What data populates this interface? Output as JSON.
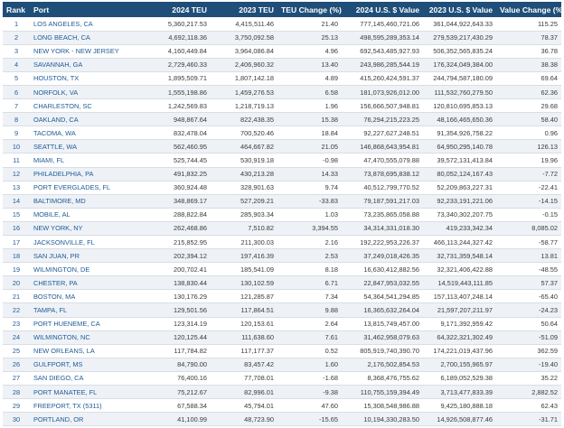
{
  "table": {
    "headers": [
      "Rank",
      "Port",
      "2024 TEU",
      "2023 TEU",
      "TEU Change (%)",
      "2024 U.S. $ Value",
      "2023 U.S. $ Value",
      "Value Change (%)"
    ],
    "rows": [
      [
        "1",
        "LOS ANGELES, CA",
        "5,360,217.53",
        "4,415,511.46",
        "21.40",
        "777,145,460,721.06",
        "361,044,922,643.33",
        "115.25"
      ],
      [
        "2",
        "LONG BEACH, CA",
        "4,692,118.36",
        "3,750,092.58",
        "25.13",
        "498,595,289,353.14",
        "279,539,217,430.29",
        "78.37"
      ],
      [
        "3",
        "NEW YORK - NEW JERSEY",
        "4,160,449.84",
        "3,964,086.84",
        "4.96",
        "692,543,485,927.93",
        "506,352,565,835.24",
        "36.78"
      ],
      [
        "4",
        "SAVANNAH, GA",
        "2,729,460.33",
        "2,406,960.32",
        "13.40",
        "243,986,285,544.19",
        "176,324,049,384.00",
        "38.38"
      ],
      [
        "5",
        "HOUSTON, TX",
        "1,895,509.71",
        "1,807,142.18",
        "4.89",
        "415,260,424,591.37",
        "244,794,587,180.09",
        "69.64"
      ],
      [
        "6",
        "NORFOLK, VA",
        "1,555,198.86",
        "1,459,276.53",
        "6.58",
        "181,073,926,012.00",
        "111,532,760,279.50",
        "62.36"
      ],
      [
        "7",
        "CHARLESTON, SC",
        "1,242,569.83",
        "1,218,719.13",
        "1.96",
        "156,666,507,948.81",
        "120,810,695,853.13",
        "29.68"
      ],
      [
        "8",
        "OAKLAND, CA",
        "948,867.64",
        "822,438.35",
        "15.38",
        "76,294,215,223.25",
        "48,166,465,650.36",
        "58.40"
      ],
      [
        "9",
        "TACOMA, WA",
        "832,478.04",
        "700,520.46",
        "18.84",
        "92,227,627,248.51",
        "91,354,926,758.22",
        "0.96"
      ],
      [
        "10",
        "SEATTLE, WA",
        "562,460.95",
        "464,667.82",
        "21.05",
        "146,868,643,954.81",
        "64,950,295,140.78",
        "126.13"
      ],
      [
        "11",
        "MIAMI, FL",
        "525,744.45",
        "530,919.18",
        "-0.98",
        "47,470,555,079.88",
        "39,572,131,413.84",
        "19.96"
      ],
      [
        "12",
        "PHILADELPHIA, PA",
        "491,832.25",
        "430,213.28",
        "14.33",
        "73,878,695,838.12",
        "80,052,124,167.43",
        "-7.72"
      ],
      [
        "13",
        "PORT EVERGLADES, FL",
        "360,924.48",
        "328,901.63",
        "9.74",
        "40,512,799,770.52",
        "52,209,863,227.31",
        "-22.41"
      ],
      [
        "14",
        "BALTIMORE, MD",
        "348,869.17",
        "527,209.21",
        "-33.83",
        "79,187,591,217.03",
        "92,233,191,221.06",
        "-14.15"
      ],
      [
        "15",
        "MOBILE, AL",
        "288,822.84",
        "285,903.34",
        "1.03",
        "73,235,865,058.88",
        "73,340,302,207.75",
        "-0.15"
      ],
      [
        "16",
        "NEW YORK, NY",
        "262,468.86",
        "7,510.82",
        "3,394.55",
        "34,314,331,018.30",
        "419,233,342.34",
        "8,085.02"
      ],
      [
        "17",
        "JACKSONVILLE, FL",
        "215,852.95",
        "211,300.03",
        "2.16",
        "192,222,953,226.37",
        "466,113,244,327.42",
        "-58.77"
      ],
      [
        "18",
        "SAN JUAN, PR",
        "202,394.12",
        "197,416.39",
        "2.53",
        "37,249,018,426.35",
        "32,731,359,548.14",
        "13.81"
      ],
      [
        "19",
        "WILMINGTON, DE",
        "200,702.41",
        "185,541.09",
        "8.18",
        "16,630,412,882.56",
        "32,321,406,422.88",
        "-48.55"
      ],
      [
        "20",
        "CHESTER, PA",
        "138,830.44",
        "130,102.59",
        "6.71",
        "22,847,953,032.55",
        "14,519,443,111.85",
        "57.37"
      ],
      [
        "21",
        "BOSTON, MA",
        "130,176.29",
        "121,285.87",
        "7.34",
        "54,364,541,294.85",
        "157,113,407,248.14",
        "-65.40"
      ],
      [
        "22",
        "TAMPA, FL",
        "129,501.56",
        "117,864.51",
        "9.88",
        "16,365,632,264.04",
        "21,597,207,211.97",
        "-24.23"
      ],
      [
        "23",
        "PORT HUENEME, CA",
        "123,314.19",
        "120,153.61",
        "2.64",
        "13,815,749,457.00",
        "9,171,392,959.42",
        "50.64"
      ],
      [
        "24",
        "WILMINGTON, NC",
        "120,125.44",
        "111,638.60",
        "7.61",
        "31,462,958,079.63",
        "64,322,321,302.49",
        "-51.09"
      ],
      [
        "25",
        "NEW ORLEANS, LA",
        "117,784.82",
        "117,177.37",
        "0.52",
        "805,919,740,390.70",
        "174,221,019,437.96",
        "362.59"
      ],
      [
        "26",
        "GULFPORT, MS",
        "84,790.00",
        "83,457.42",
        "1.60",
        "2,176,502,854.53",
        "2,700,155,965.97",
        "-19.40"
      ],
      [
        "27",
        "SAN DIEGO, CA",
        "76,400.16",
        "77,708.01",
        "-1.68",
        "8,368,476,755.62",
        "6,189,052,529.38",
        "35.22"
      ],
      [
        "28",
        "PORT MANATEE, FL",
        "75,212.67",
        "82,996.01",
        "-9.38",
        "110,755,159,394.49",
        "3,713,477,833.39",
        "2,882.52"
      ],
      [
        "29",
        "FREEPORT, TX (5311)",
        "67,588.34",
        "45,794.01",
        "47.60",
        "15,308,548,986.88",
        "9,425,180,888.18",
        "62.43"
      ],
      [
        "30",
        "PORTLAND, OR",
        "41,100.99",
        "48,723.90",
        "-15.65",
        "10,194,330,283.50",
        "14,926,508,877.46",
        "-31.71"
      ]
    ]
  }
}
